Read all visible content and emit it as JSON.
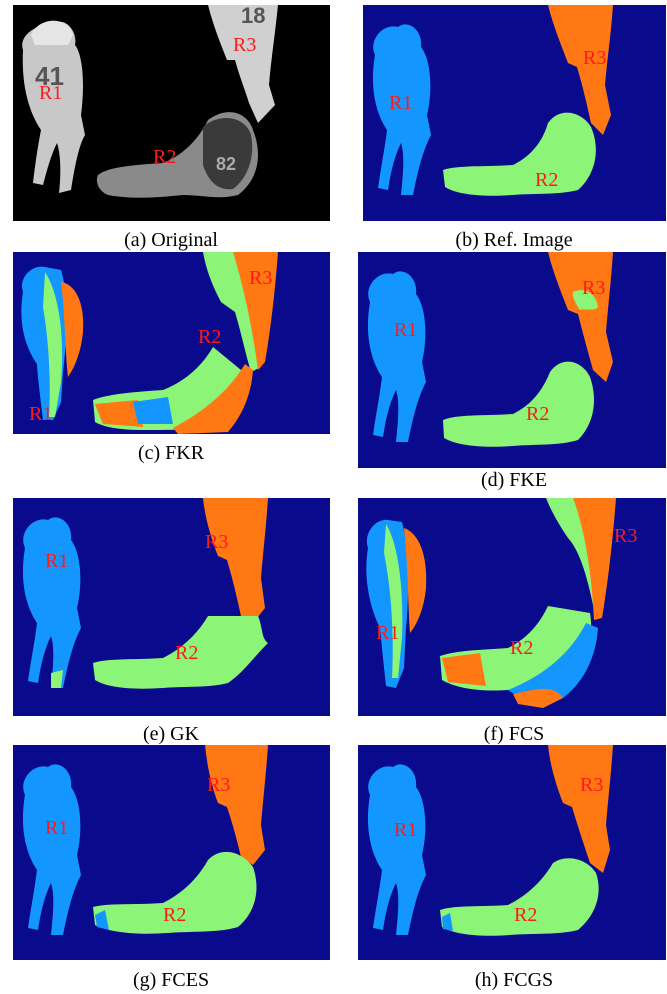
{
  "colors": {
    "background": "#0a0a8c",
    "region1": "#1496ff",
    "region2": "#8cf578",
    "region3": "#ff7814",
    "label": "#ff1a1a",
    "photo_bg": "#000000"
  },
  "region_labels": {
    "r1": "R1",
    "r2": "R2",
    "r3": "R3"
  },
  "panels": [
    {
      "id": "a",
      "caption": "(a) Original"
    },
    {
      "id": "b",
      "caption": "(b) Ref. Image"
    },
    {
      "id": "c",
      "caption": "(c) FKR"
    },
    {
      "id": "d",
      "caption": "(d) FKE"
    },
    {
      "id": "e",
      "caption": "(e) GK"
    },
    {
      "id": "f",
      "caption": "(f) FCS"
    },
    {
      "id": "g",
      "caption": "(g) FCES"
    },
    {
      "id": "h",
      "caption": "(h) FCGS"
    }
  ]
}
